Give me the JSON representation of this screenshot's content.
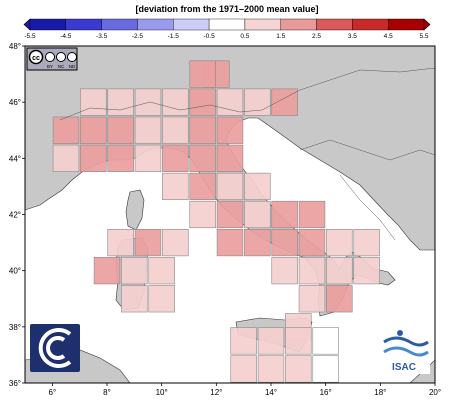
{
  "legend": {
    "title": "[deviation from the 1971–2000 mean value]",
    "ticks": [
      "-5.5",
      "-4.5",
      "-3.5",
      "-2.5",
      "-1.5",
      "-0.5",
      "0.5",
      "1.5",
      "2.5",
      "3.5",
      "4.5",
      "5.5"
    ],
    "colors": [
      "#1a1aa8",
      "#3a3ad0",
      "#6a6ae0",
      "#9a9aee",
      "#ccccf6",
      "#ffffff",
      "#f7d4d4",
      "#e89a9a",
      "#d85a5a",
      "#c82a2a",
      "#a80000"
    ]
  },
  "map": {
    "lat_labels": [
      "48°",
      "46°",
      "44°",
      "42°",
      "40°",
      "38°",
      "36°"
    ],
    "lon_labels": [
      "6°",
      "8°",
      "10°",
      "12°",
      "14°",
      "16°",
      "18°",
      "20°"
    ],
    "land_color": "#c8c8c8",
    "sea_color": "#ffffff",
    "cells": [
      [
        12,
        47,
        2
      ],
      [
        11.5,
        47,
        2
      ],
      [
        7.5,
        46,
        1
      ],
      [
        8.5,
        46,
        1
      ],
      [
        9.5,
        46,
        1
      ],
      [
        10.5,
        46,
        1
      ],
      [
        11.5,
        46,
        2
      ],
      [
        12.5,
        46,
        1
      ],
      [
        13.5,
        46,
        1
      ],
      [
        14.5,
        46,
        2
      ],
      [
        6.5,
        45,
        2
      ],
      [
        7.5,
        45,
        2
      ],
      [
        8.5,
        45,
        2
      ],
      [
        9.5,
        45,
        1
      ],
      [
        10.5,
        45,
        1
      ],
      [
        11.5,
        45,
        2
      ],
      [
        12.5,
        45,
        2
      ],
      [
        6.5,
        44,
        1
      ],
      [
        7.5,
        44,
        2
      ],
      [
        8.5,
        44,
        2
      ],
      [
        9.5,
        44,
        1
      ],
      [
        10.5,
        44,
        2
      ],
      [
        11.5,
        44,
        2
      ],
      [
        12.5,
        44,
        2
      ],
      [
        10.5,
        43,
        1
      ],
      [
        11.5,
        43,
        2
      ],
      [
        12.5,
        43,
        1
      ],
      [
        13.5,
        43,
        1
      ],
      [
        11.5,
        42,
        1
      ],
      [
        12.5,
        42,
        2
      ],
      [
        13.5,
        42,
        1
      ],
      [
        14.5,
        42,
        2
      ],
      [
        15.5,
        42,
        2
      ],
      [
        8.5,
        41,
        1
      ],
      [
        9.5,
        41,
        2
      ],
      [
        10.5,
        41,
        1
      ],
      [
        12.5,
        41,
        2
      ],
      [
        13.5,
        41,
        2
      ],
      [
        14.5,
        41,
        2
      ],
      [
        15.5,
        41,
        2
      ],
      [
        16.5,
        41,
        1
      ],
      [
        17.5,
        41,
        1
      ],
      [
        8,
        40,
        2
      ],
      [
        9,
        40,
        1
      ],
      [
        10,
        40,
        1
      ],
      [
        14.5,
        40,
        1
      ],
      [
        15.5,
        40,
        1
      ],
      [
        16.5,
        40,
        1
      ],
      [
        17.5,
        40,
        1
      ],
      [
        9,
        39,
        1
      ],
      [
        10,
        39,
        1
      ],
      [
        15.5,
        39,
        1
      ],
      [
        16.5,
        39,
        2
      ],
      [
        15,
        38,
        1
      ],
      [
        13,
        37.5,
        1
      ],
      [
        14,
        37.5,
        1
      ],
      [
        15,
        37.5,
        1
      ],
      [
        16,
        37.5,
        0
      ],
      [
        13,
        36.5,
        1
      ],
      [
        14,
        36.5,
        1
      ],
      [
        15,
        36.5,
        1
      ],
      [
        16,
        36.5,
        0
      ]
    ]
  },
  "logos": {
    "cc": "cc",
    "cc_sub": [
      "BY",
      "NC",
      "ND"
    ],
    "isac": "ISAC"
  }
}
